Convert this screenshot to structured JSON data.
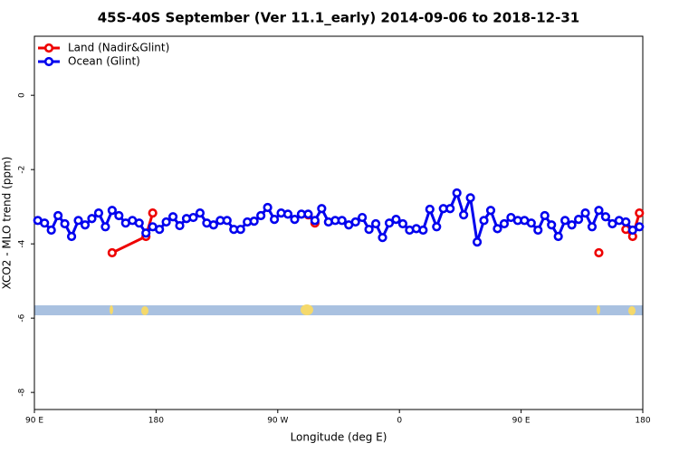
{
  "chart_data": {
    "type": "line",
    "title": "45S-40S September (Ver 11.1_early)   2014-09-06 to 2018-12-31",
    "xlabel": "Longitude (deg E)",
    "ylabel": "XCO2 - MLO trend (ppm)",
    "xlim": [
      90,
      540
    ],
    "ylim": [
      -8.46,
      1.59
    ],
    "xticks": [
      {
        "value": 90,
        "label": "90 E"
      },
      {
        "value": 180,
        "label": "180"
      },
      {
        "value": 270,
        "label": "90 W"
      },
      {
        "value": 360,
        "label": "0"
      },
      {
        "value": 450,
        "label": "90 E"
      },
      {
        "value": 540,
        "label": "180"
      }
    ],
    "yticks": [
      0,
      -2,
      -4,
      -6,
      -8
    ],
    "legend": "top-left",
    "series": [
      {
        "name": "Land (Nadir&Glint)",
        "color": "#ee0000",
        "x": [
          147.5,
          172.5,
          177.5,
          185,
          292.5,
          297.5,
          400,
          507.5,
          515,
          527.5,
          532.5,
          537.5
        ],
        "values": [
          -4.24,
          -3.8,
          -3.17,
          null,
          -3.22,
          -3.44,
          null,
          -4.24,
          null,
          -3.61,
          -3.8,
          -3.17
        ]
      },
      {
        "name": "Ocean (Glint)",
        "color": "#0000ee",
        "x": [
          92.5,
          97.5,
          102.5,
          107.5,
          112.5,
          117.5,
          122.5,
          127.5,
          132.5,
          137.5,
          142.5,
          147.5,
          152.5,
          157.5,
          162.5,
          167.5,
          172.5,
          177.5,
          182.5,
          187.5,
          192.5,
          197.5,
          202.5,
          207.5,
          212.5,
          217.5,
          222.5,
          227.5,
          232.5,
          237.5,
          242.5,
          247.5,
          252.5,
          257.5,
          262.5,
          267.5,
          272.5,
          277.5,
          282.5,
          287.5,
          292.5,
          297.5,
          302.5,
          307.5,
          312.5,
          317.5,
          322.5,
          327.5,
          332.5,
          337.5,
          342.5,
          347.5,
          352.5,
          357.5,
          362.5,
          367.5,
          372.5,
          377.5,
          382.5,
          387.5,
          392.5,
          397.5,
          402.5,
          407.5,
          412.5,
          417.5,
          422.5,
          427.5,
          432.5,
          437.5,
          442.5,
          447.5,
          452.5,
          457.5,
          462.5,
          467.5,
          472.5,
          477.5,
          482.5,
          487.5,
          492.5,
          497.5,
          502.5,
          507.5,
          512.5,
          517.5,
          522.5,
          527.5,
          532.5,
          537.5
        ],
        "values": [
          -3.37,
          -3.44,
          -3.63,
          -3.24,
          -3.46,
          -3.8,
          -3.37,
          -3.49,
          -3.32,
          -3.17,
          -3.54,
          -3.1,
          -3.24,
          -3.44,
          -3.37,
          -3.44,
          -3.71,
          -3.54,
          -3.61,
          -3.41,
          -3.27,
          -3.51,
          -3.32,
          -3.29,
          -3.17,
          -3.44,
          -3.49,
          -3.37,
          -3.37,
          -3.61,
          -3.61,
          -3.41,
          -3.39,
          -3.24,
          -3.02,
          -3.34,
          -3.17,
          -3.2,
          -3.34,
          -3.2,
          -3.2,
          -3.37,
          -3.05,
          -3.41,
          -3.37,
          -3.37,
          -3.49,
          -3.41,
          -3.29,
          -3.61,
          -3.46,
          -3.83,
          -3.44,
          -3.34,
          -3.46,
          -3.63,
          -3.59,
          -3.63,
          -3.07,
          -3.54,
          -3.05,
          -3.05,
          -2.63,
          -3.22,
          -2.76,
          -3.95,
          -3.37,
          -3.1,
          -3.59,
          -3.46,
          -3.29,
          -3.37,
          -3.37,
          -3.44,
          -3.63,
          -3.24,
          -3.49,
          -3.8,
          -3.37,
          -3.49,
          -3.34,
          -3.17,
          -3.54,
          -3.1,
          -3.27,
          -3.46,
          -3.37,
          -3.41,
          -3.63,
          -3.54
        ]
      }
    ]
  }
}
